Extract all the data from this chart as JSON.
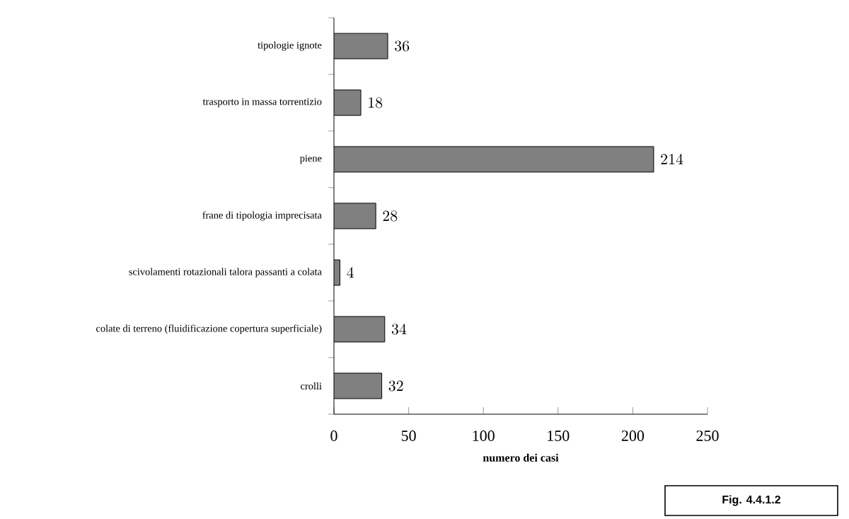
{
  "chart_data": {
    "type": "bar",
    "orientation": "horizontal",
    "categories": [
      "tipologie ignote",
      "trasporto in massa torrentizio",
      "piene",
      "frane di tipologia imprecisata",
      "scivolamenti rotazionali talora passanti a colata",
      "colate di terreno (fluidificazione copertura superficiale)",
      "crolli"
    ],
    "values": [
      36,
      18,
      214,
      28,
      4,
      34,
      32
    ],
    "color": "#808080",
    "xlim": [
      0,
      250
    ],
    "xticks": [
      0,
      50,
      100,
      150,
      200,
      250
    ],
    "xlabel": "numero dei casi",
    "data_labels": true,
    "annotations": [
      "Fig. 4.4.1.2"
    ]
  }
}
